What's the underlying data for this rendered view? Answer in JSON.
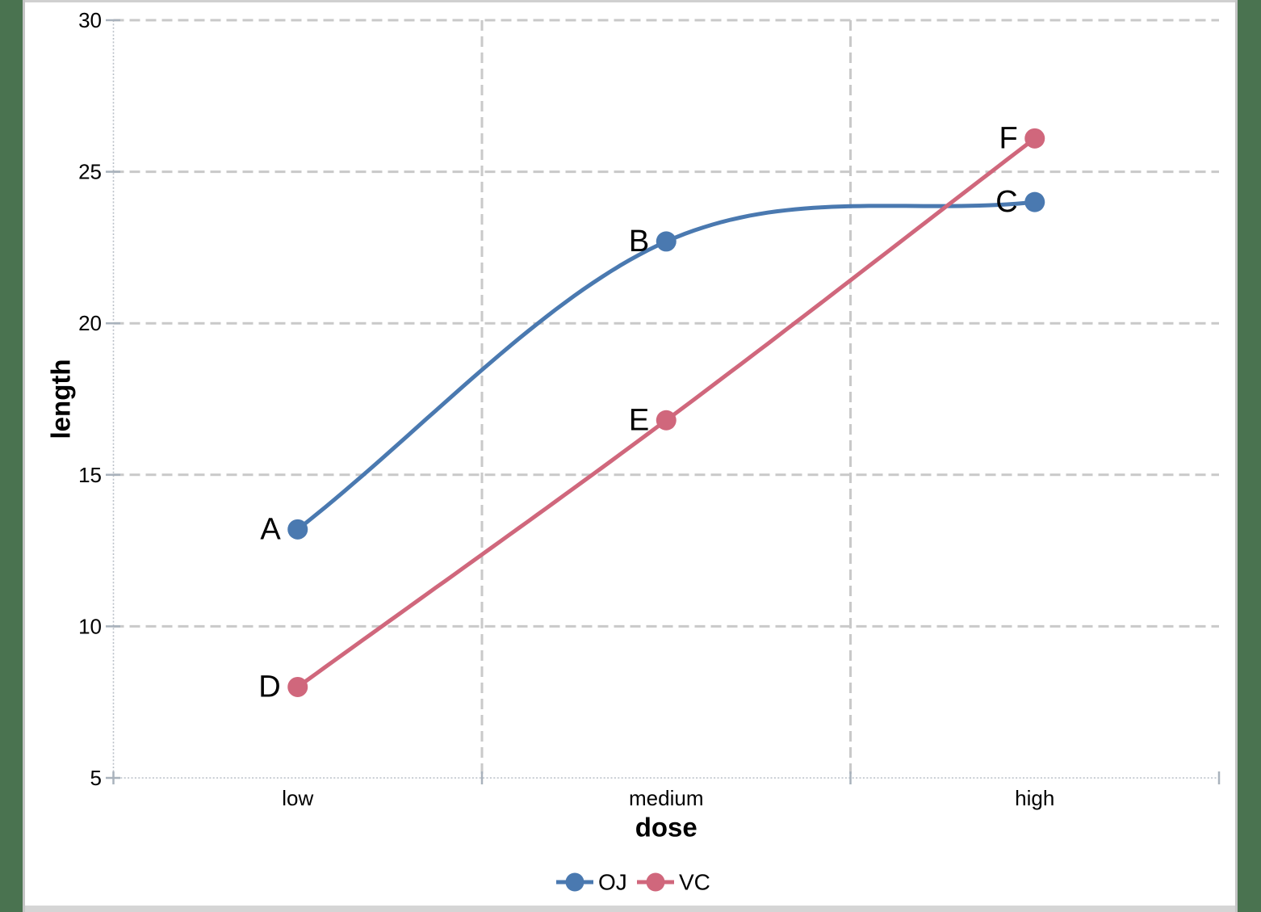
{
  "chart_data": {
    "type": "line",
    "title": "",
    "xlabel": "dose",
    "ylabel": "length",
    "categories": [
      "low",
      "medium",
      "high"
    ],
    "ylim": [
      5,
      30
    ],
    "yticks": [
      5,
      10,
      15,
      20,
      25,
      30
    ],
    "grid": {
      "horizontal_at": [
        10,
        15,
        20,
        25,
        30
      ],
      "vertical_between_categories": true,
      "style": "dashed"
    },
    "legend_position": "bottom-center",
    "smooth_lines": true,
    "series": [
      {
        "name": "OJ",
        "color": "#4A79B0",
        "values": [
          13.2,
          22.7,
          24.0
        ],
        "point_labels": [
          "A",
          "B",
          "C"
        ]
      },
      {
        "name": "VC",
        "color": "#D0677C",
        "values": [
          8.0,
          16.8,
          26.1
        ],
        "point_labels": [
          "D",
          "E",
          "F"
        ]
      }
    ]
  },
  "colors": {
    "gridline": "#C9C9C9",
    "axis_line": "#B9BFC7",
    "tick_mark": "#A9B2BC",
    "text": "#000000",
    "frame_green": "#4A7350",
    "frame_gray_line": "#C4C4C4",
    "frame_gray_top": "#D0D0D0",
    "frame_gray_bottom": "#D5D5D5",
    "background": "#FFFFFF"
  }
}
